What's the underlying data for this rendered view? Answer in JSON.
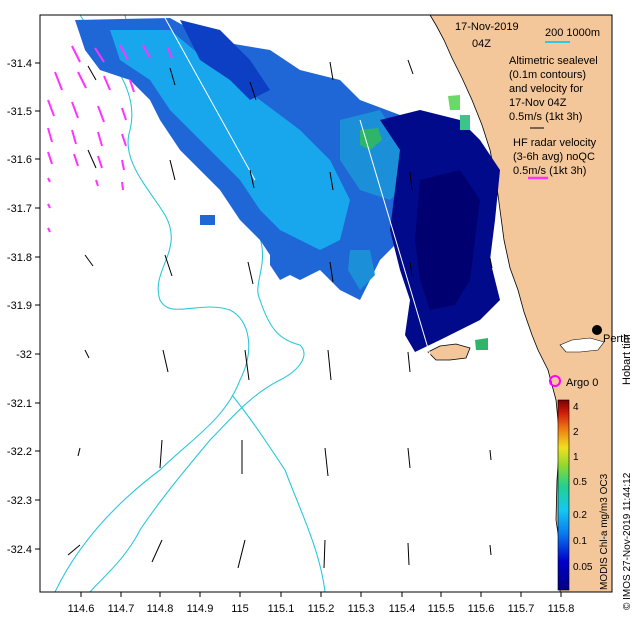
{
  "map": {
    "date_line1": "17-Nov-2019",
    "date_line2": "04Z",
    "bathy_legend": "200  1000m",
    "altimetric_lines": [
      "Altimetric sealevel",
      "(0.1m contours)",
      "and velocity for",
      "17-Nov 04Z",
      "0.5m/s (1kt 3h)"
    ],
    "hf_lines": [
      "HF radar velocity",
      "(3-6h avg) noQC",
      "0.5m/s (1kt 3h)"
    ],
    "place_perth": "Perth",
    "argo_label": "Argo 0",
    "hobart_label": "Hobart tim",
    "credit": "© IMOS 27-Nov-2019 11:44:12",
    "colorbar_title": "MODIS Chl-a mg/m3 OC3",
    "colorbar_ticks": [
      "0.05",
      "0.1",
      "0.2",
      "0.5",
      "1",
      "2",
      "4"
    ],
    "x_ticks": [
      "114.6",
      "114.7",
      "114.8",
      "114.9",
      "115",
      "115.1",
      "115.2",
      "115.3",
      "115.4",
      "115.5",
      "115.6",
      "115.7",
      "115.8"
    ],
    "y_ticks": [
      "-31.4",
      "-31.5",
      "-31.6",
      "-31.7",
      "-31.8",
      "-31.9",
      "-32",
      "-32.1",
      "-32.2",
      "-32.3",
      "-32.4"
    ],
    "colors": {
      "land": "#f4c79a",
      "bathy_200": "#2ec8d8",
      "bathy_1000": "#1ec7e6",
      "hf_vector": "#ff33ff",
      "argo": "#ff00ff",
      "chl_low": "#000080",
      "chl_mid": "#0aa0e8",
      "chl_high": "#7a0000"
    }
  }
}
